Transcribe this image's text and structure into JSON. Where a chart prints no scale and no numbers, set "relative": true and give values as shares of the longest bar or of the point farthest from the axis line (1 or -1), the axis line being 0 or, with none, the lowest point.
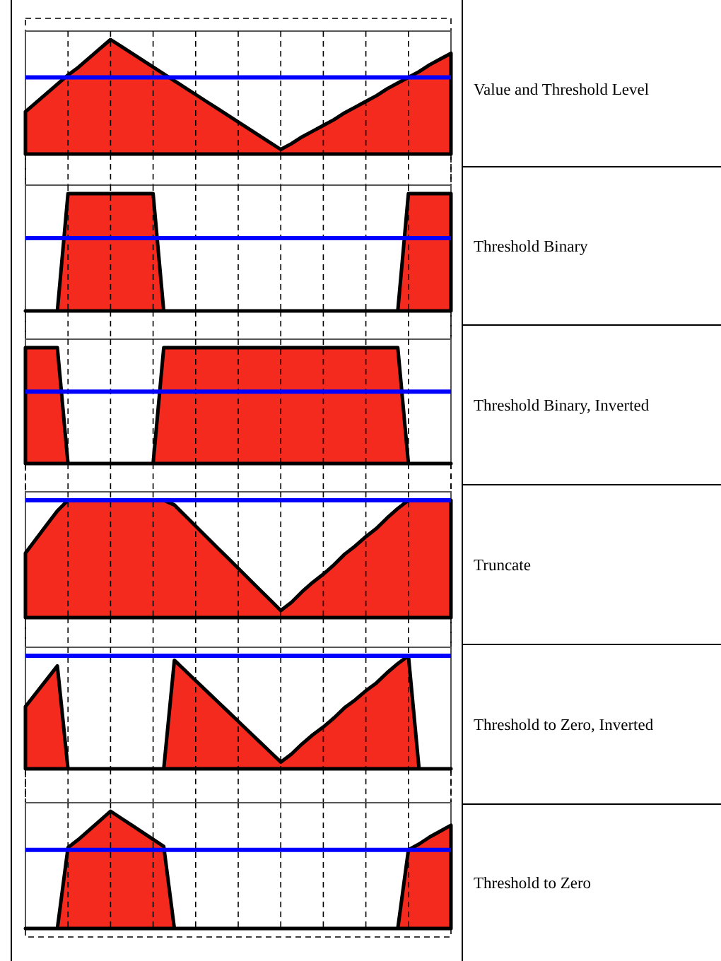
{
  "chart_data": [
    {
      "type": "area",
      "y2label": "Value and Threshold Level",
      "relative": true,
      "grid": "x",
      "color": "#f52a1e",
      "categories": [
        null,
        null,
        null,
        null,
        null,
        null,
        null,
        null,
        null,
        null,
        null,
        null,
        null,
        null,
        null,
        null,
        null,
        null,
        null,
        null,
        null,
        null,
        null,
        null,
        null,
        null,
        null,
        null,
        null,
        null,
        null,
        null,
        null,
        null,
        null,
        null,
        null,
        null,
        null,
        null,
        null
      ],
      "values": [
        0.37,
        0.45,
        0.53,
        0.61,
        0.69,
        0.76,
        0.84,
        0.92,
        1.0,
        0.94,
        0.88,
        0.82,
        0.76,
        0.7,
        0.64,
        0.58,
        0.52,
        0.46,
        0.4,
        0.34,
        0.28,
        0.22,
        0.16,
        0.1,
        0.04,
        0.09,
        0.15,
        0.2,
        0.25,
        0.3,
        0.36,
        0.41,
        0.46,
        0.51,
        0.57,
        0.62,
        0.67,
        0.72,
        0.78,
        0.83,
        0.88
      ],
      "ref_lines": [
        {
          "axis": "y",
          "value": 0.67,
          "color": "#0000ff"
        }
      ]
    },
    {
      "type": "area",
      "y2label": "Threshold Binary",
      "relative": true,
      "grid": "x",
      "color": "#f52a1e",
      "categories": [
        null,
        null,
        null,
        null,
        null,
        null,
        null,
        null,
        null,
        null,
        null,
        null,
        null,
        null,
        null,
        null,
        null,
        null,
        null,
        null,
        null,
        null,
        null,
        null,
        null,
        null,
        null,
        null,
        null,
        null,
        null,
        null,
        null,
        null,
        null,
        null,
        null,
        null,
        null,
        null,
        null
      ],
      "values": [
        0,
        0,
        0,
        0,
        1,
        1,
        1,
        1,
        1,
        1,
        1,
        1,
        1,
        0,
        0,
        0,
        0,
        0,
        0,
        0,
        0,
        0,
        0,
        0,
        0,
        0,
        0,
        0,
        0,
        0,
        0,
        0,
        0,
        0,
        0,
        0,
        1,
        1,
        1,
        1,
        1
      ],
      "ref_lines": [
        {
          "axis": "y",
          "value": 0.62,
          "color": "#0000ff"
        }
      ]
    },
    {
      "type": "area",
      "y2label": "Threshold Binary, Inverted",
      "relative": true,
      "grid": "x",
      "color": "#f52a1e",
      "categories": [
        null,
        null,
        null,
        null,
        null,
        null,
        null,
        null,
        null,
        null,
        null,
        null,
        null,
        null,
        null,
        null,
        null,
        null,
        null,
        null,
        null,
        null,
        null,
        null,
        null,
        null,
        null,
        null,
        null,
        null,
        null,
        null,
        null,
        null,
        null,
        null,
        null,
        null,
        null,
        null,
        null
      ],
      "values": [
        1,
        1,
        1,
        1,
        0,
        0,
        0,
        0,
        0,
        0,
        0,
        0,
        0,
        1,
        1,
        1,
        1,
        1,
        1,
        1,
        1,
        1,
        1,
        1,
        1,
        1,
        1,
        1,
        1,
        1,
        1,
        1,
        1,
        1,
        1,
        1,
        0,
        0,
        0,
        0,
        0
      ],
      "ref_lines": [
        {
          "axis": "y",
          "value": 0.62,
          "color": "#0000ff"
        }
      ]
    },
    {
      "type": "area",
      "y2label": "Truncate",
      "relative": true,
      "grid": "x",
      "color": "#f52a1e",
      "categories": [
        null,
        null,
        null,
        null,
        null,
        null,
        null,
        null,
        null,
        null,
        null,
        null,
        null,
        null,
        null,
        null,
        null,
        null,
        null,
        null,
        null,
        null,
        null,
        null,
        null,
        null,
        null,
        null,
        null,
        null,
        null,
        null,
        null,
        null,
        null,
        null,
        null,
        null,
        null,
        null,
        null
      ],
      "values": [
        0.55,
        0.67,
        0.79,
        0.91,
        1,
        1,
        1,
        1,
        1,
        1,
        1,
        1,
        1,
        1,
        0.96,
        0.87,
        0.78,
        0.69,
        0.6,
        0.51,
        0.42,
        0.33,
        0.24,
        0.15,
        0.06,
        0.13,
        0.22,
        0.3,
        0.37,
        0.45,
        0.54,
        0.61,
        0.69,
        0.76,
        0.85,
        0.93,
        1,
        1,
        1,
        1,
        1
      ],
      "ref_lines": [
        {
          "axis": "y",
          "value": 1,
          "color": "#0000ff"
        }
      ]
    },
    {
      "type": "area",
      "y2label": "Threshold to Zero, Inverted",
      "relative": true,
      "grid": "x",
      "color": "#f52a1e",
      "categories": [
        null,
        null,
        null,
        null,
        null,
        null,
        null,
        null,
        null,
        null,
        null,
        null,
        null,
        null,
        null,
        null,
        null,
        null,
        null,
        null,
        null,
        null,
        null,
        null,
        null,
        null,
        null,
        null,
        null,
        null,
        null,
        null,
        null,
        null,
        null,
        null,
        null,
        null,
        null,
        null,
        null
      ],
      "values": [
        0.55,
        0.67,
        0.79,
        0.91,
        0,
        0,
        0,
        0,
        0,
        0,
        0,
        0,
        0,
        0,
        0.96,
        0.87,
        0.78,
        0.69,
        0.6,
        0.51,
        0.42,
        0.33,
        0.24,
        0.15,
        0.06,
        0.13,
        0.22,
        0.3,
        0.37,
        0.45,
        0.54,
        0.61,
        0.69,
        0.76,
        0.85,
        0.93,
        1,
        0,
        0,
        0,
        0
      ],
      "ref_lines": [
        {
          "axis": "y",
          "value": 1,
          "color": "#0000ff"
        }
      ]
    },
    {
      "type": "area",
      "y2label": "Threshold to Zero",
      "relative": true,
      "grid": "x",
      "color": "#f52a1e",
      "categories": [
        null,
        null,
        null,
        null,
        null,
        null,
        null,
        null,
        null,
        null,
        null,
        null,
        null,
        null,
        null,
        null,
        null,
        null,
        null,
        null,
        null,
        null,
        null,
        null,
        null,
        null,
        null,
        null,
        null,
        null,
        null,
        null,
        null,
        null,
        null,
        null,
        null,
        null,
        null,
        null,
        null
      ],
      "values": [
        0,
        0,
        0,
        0,
        0.69,
        0.76,
        0.84,
        0.92,
        1.0,
        0.94,
        0.88,
        0.82,
        0.76,
        0.7,
        0,
        0,
        0,
        0,
        0,
        0,
        0,
        0,
        0,
        0,
        0,
        0,
        0,
        0,
        0,
        0,
        0,
        0,
        0,
        0,
        0,
        0,
        0.67,
        0.72,
        0.78,
        0.83,
        0.88
      ],
      "ref_lines": [
        {
          "axis": "y",
          "value": 0.67,
          "color": "#0000ff"
        }
      ]
    }
  ]
}
